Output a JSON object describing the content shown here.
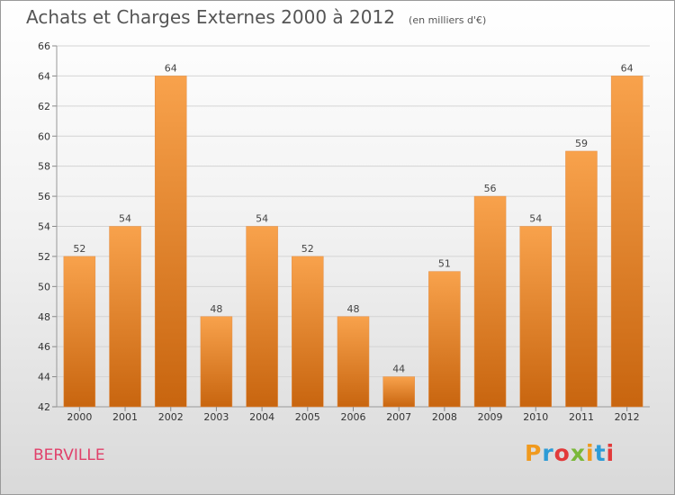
{
  "chart_data": {
    "type": "bar",
    "title": "Achats et Charges Externes 2000 à 2012",
    "subtitle": "(en milliers d'€)",
    "categories": [
      "2000",
      "2001",
      "2002",
      "2003",
      "2004",
      "2005",
      "2006",
      "2007",
      "2008",
      "2009",
      "2010",
      "2011",
      "2012"
    ],
    "values": [
      52,
      54,
      64,
      48,
      54,
      52,
      48,
      44,
      51,
      56,
      54,
      59,
      64
    ],
    "ylim": [
      42,
      66
    ],
    "yticks": [
      42,
      44,
      46,
      48,
      50,
      52,
      54,
      56,
      58,
      60,
      62,
      64,
      66
    ],
    "grid": true,
    "bar_color_top": "#f8a24c",
    "bar_color_bottom": "#c8650f"
  },
  "commune": "BERVILLE",
  "logo": {
    "text": "Proxiti",
    "colors": [
      "#f09a1e",
      "#2d9bd6",
      "#e23a3a",
      "#7ab839",
      "#f09a1e",
      "#2d9bd6",
      "#e23a3a"
    ]
  }
}
